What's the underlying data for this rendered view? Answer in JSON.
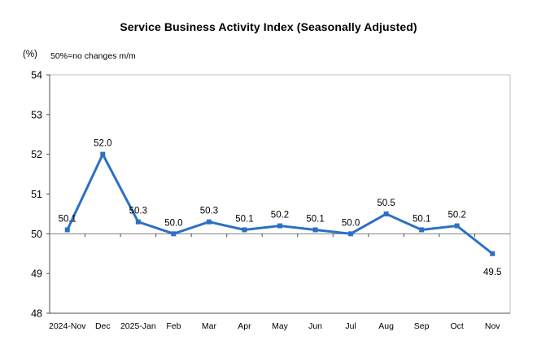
{
  "header": {
    "title": "Service Business Activity Index (Seasonally Adjusted)",
    "y_unit_label": "(%)",
    "subtitle": "50%=no changes m/m"
  },
  "chart_data": {
    "type": "line",
    "title": "Service Business Activity Index (Seasonally Adjusted)",
    "subtitle": "50%=no changes m/m",
    "ylabel": "(%)",
    "xlabel": "",
    "categories": [
      "2024-Nov",
      "Dec",
      "2025-Jan",
      "Feb",
      "Mar",
      "Apr",
      "May",
      "Jun",
      "Jul",
      "Aug",
      "Sep",
      "Oct",
      "Nov"
    ],
    "values": [
      50.1,
      52.0,
      50.3,
      50.0,
      50.3,
      50.1,
      50.2,
      50.1,
      50.0,
      50.5,
      50.1,
      50.2,
      49.5
    ],
    "ylim": [
      48,
      54
    ],
    "yticks": [
      48,
      49,
      50,
      51,
      52,
      53,
      54
    ],
    "reference_line": 50,
    "grid": false,
    "legend_position": "none",
    "marker": "square",
    "colors": {
      "line": "#2C70C3",
      "marker": "#2C70C3",
      "axis": "#4d4d4d",
      "plot_border": "#bfbfbf",
      "reference_line": "#7f7f7f",
      "label_text": "#000000"
    }
  }
}
